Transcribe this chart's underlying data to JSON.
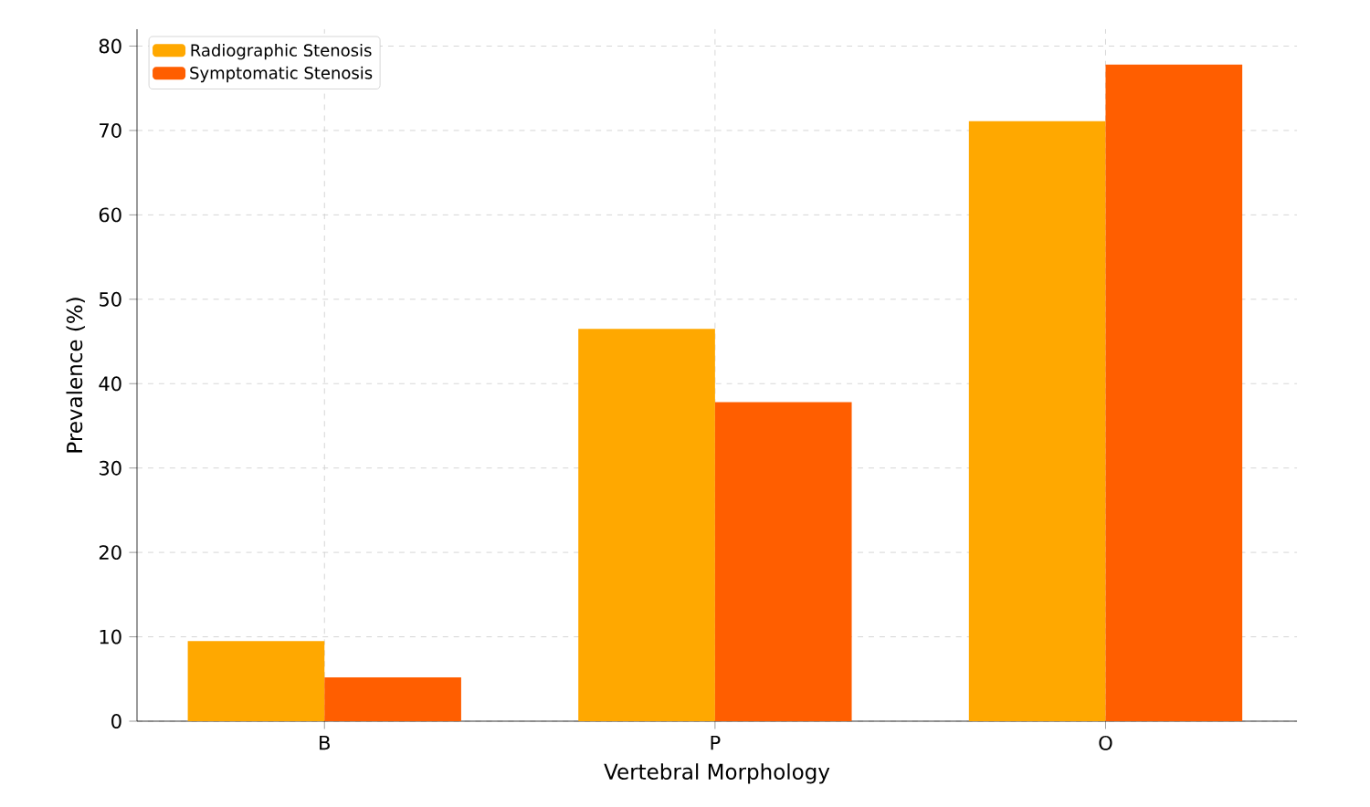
{
  "chart_data": {
    "type": "bar",
    "xlabel": "Vertebral Morphology",
    "ylabel": "Prevalence (%)",
    "categories": [
      "B",
      "P",
      "O"
    ],
    "series": [
      {
        "name": "Radiographic Stenosis",
        "color": "#ffa800",
        "values": [
          9.5,
          46.5,
          71.1
        ]
      },
      {
        "name": "Symptomatic Stenosis",
        "color": "#ff5e00",
        "values": [
          5.2,
          37.8,
          77.8
        ]
      }
    ],
    "ylim": [
      0,
      82
    ],
    "yticks": [
      0,
      10,
      20,
      30,
      40,
      50,
      60,
      70,
      80
    ],
    "grid": true,
    "legend": "top left"
  }
}
